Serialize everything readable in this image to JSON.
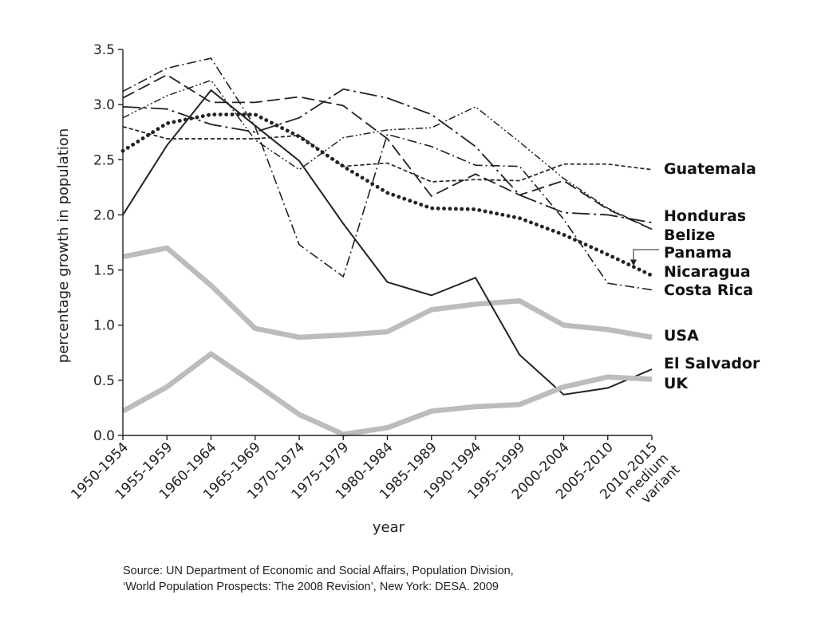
{
  "chart_data": {
    "type": "line",
    "xlabel": "year",
    "ylabel": "percentage growth in population",
    "ylim": [
      0,
      3.5
    ],
    "yticks": [
      "0.0",
      "0.5",
      "1.0",
      "1.5",
      "2.0",
      "2.5",
      "3.0",
      "3.5"
    ],
    "categories": [
      "1950-1954",
      "1955-1959",
      "1960-1964",
      "1965-1969",
      "1970-1974",
      "1975-1979",
      "1980-1984",
      "1985-1989",
      "1990-1994",
      "1995-1999",
      "2000-2004",
      "2005-2010",
      "2010-2015 medium variant"
    ],
    "category_lines": [
      [
        "1950-1954"
      ],
      [
        "1955-1959"
      ],
      [
        "1960-1964"
      ],
      [
        "1965-1969"
      ],
      [
        "1970-1974"
      ],
      [
        "1975-1979"
      ],
      [
        "1980-1984"
      ],
      [
        "1985-1989"
      ],
      [
        "1990-1994"
      ],
      [
        "1995-1999"
      ],
      [
        "2000-2004"
      ],
      [
        "2005-2010"
      ],
      [
        "2010-2015",
        "medium",
        "variant"
      ]
    ],
    "grid": false,
    "legend": "labels at right end of lines",
    "series": [
      {
        "name": "Guatemala",
        "values": [
          2.8,
          2.69,
          2.69,
          2.69,
          2.72,
          2.44,
          2.47,
          2.3,
          2.32,
          2.31,
          2.46,
          2.46,
          2.41
        ],
        "style": "short-dash",
        "color": "#222222"
      },
      {
        "name": "Honduras",
        "values": [
          2.98,
          2.96,
          2.82,
          2.75,
          2.88,
          3.14,
          3.06,
          2.91,
          2.62,
          2.18,
          2.02,
          2.0,
          1.93
        ],
        "style": "long-dash-dot",
        "color": "#222222"
      },
      {
        "name": "Belize",
        "values": [
          3.06,
          3.27,
          3.02,
          3.02,
          3.07,
          2.99,
          2.69,
          2.17,
          2.37,
          2.18,
          2.31,
          2.05,
          1.87
        ],
        "style": "long-dash",
        "color": "#222222"
      },
      {
        "name": "Panama",
        "values": [
          2.58,
          2.83,
          2.91,
          2.91,
          2.71,
          2.44,
          2.2,
          2.06,
          2.05,
          1.97,
          1.82,
          1.64,
          1.45
        ],
        "style": "dots",
        "color": "#222222"
      },
      {
        "name": "Nicaragua",
        "values": [
          2.88,
          3.08,
          3.22,
          2.68,
          2.41,
          2.7,
          2.77,
          2.79,
          2.98,
          2.66,
          2.33,
          2.06,
          1.87
        ],
        "style": "dash-dot-dot",
        "color": "#222222"
      },
      {
        "name": "Costa Rica",
        "values": [
          3.12,
          3.33,
          3.42,
          2.8,
          1.73,
          1.44,
          2.73,
          2.62,
          2.45,
          2.44,
          1.96,
          1.38,
          1.32
        ],
        "style": "dash-dot",
        "color": "#222222"
      },
      {
        "name": "USA",
        "values": [
          1.62,
          1.7,
          1.36,
          0.97,
          0.89,
          0.91,
          0.94,
          1.14,
          1.19,
          1.22,
          1.0,
          0.96,
          0.89
        ],
        "style": "thick-solid",
        "color": "#bcbcbc"
      },
      {
        "name": "El Salvador",
        "values": [
          2.0,
          2.63,
          3.13,
          2.81,
          2.49,
          1.92,
          1.39,
          1.27,
          1.43,
          0.73,
          0.37,
          0.43,
          0.6
        ],
        "style": "solid",
        "color": "#222222"
      },
      {
        "name": "UK",
        "values": [
          0.22,
          0.44,
          0.74,
          0.47,
          0.19,
          0.01,
          0.07,
          0.22,
          0.26,
          0.28,
          0.44,
          0.53,
          0.51
        ],
        "style": "thick-solid",
        "color": "#bcbcbc"
      }
    ],
    "annotations": [
      "Source: UN Department of Economic and Social Affairs, Population Division,",
      "‘World Population Prospects: The 2008 Revision’, New York: DESA. 2009"
    ]
  }
}
